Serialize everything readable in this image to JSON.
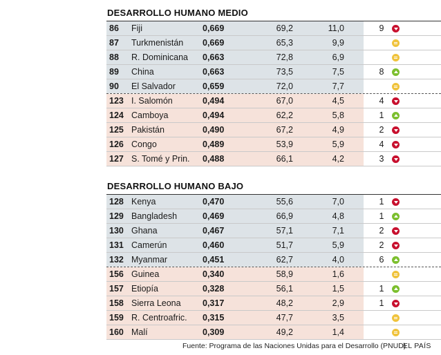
{
  "sections": [
    {
      "title": "DESARROLLO HUMANO MEDIO",
      "rows": [
        {
          "rank": "86",
          "country": "Fiji",
          "idh": "0,669",
          "life": "69,2",
          "school": "11,0",
          "change": "9",
          "trend": "down",
          "group": "blue"
        },
        {
          "rank": "87",
          "country": "Turkmenistán",
          "idh": "0,669",
          "life": "65,3",
          "school": "9,9",
          "change": "",
          "trend": "equal",
          "group": "blue"
        },
        {
          "rank": "88",
          "country": "R. Dominicana",
          "idh": "0,663",
          "life": "72,8",
          "school": "6,9",
          "change": "",
          "trend": "equal",
          "group": "blue"
        },
        {
          "rank": "89",
          "country": "China",
          "idh": "0,663",
          "life": "73,5",
          "school": "7,5",
          "change": "8",
          "trend": "up",
          "group": "blue"
        },
        {
          "rank": "90",
          "country": "El Salvador",
          "idh": "0,659",
          "life": "72,0",
          "school": "7,7",
          "change": "",
          "trend": "equal",
          "group": "blue"
        },
        {
          "rank": "123",
          "country": "I. Salomón",
          "idh": "0,494",
          "life": "67,0",
          "school": "4,5",
          "change": "4",
          "trend": "down",
          "group": "pink"
        },
        {
          "rank": "124",
          "country": "Camboya",
          "idh": "0,494",
          "life": "62,2",
          "school": "5,8",
          "change": "1",
          "trend": "up",
          "group": "pink"
        },
        {
          "rank": "125",
          "country": "Pakistán",
          "idh": "0,490",
          "life": "67,2",
          "school": "4,9",
          "change": "2",
          "trend": "down",
          "group": "pink"
        },
        {
          "rank": "126",
          "country": "Congo",
          "idh": "0,489",
          "life": "53,9",
          "school": "5,9",
          "change": "4",
          "trend": "down",
          "group": "pink"
        },
        {
          "rank": "127",
          "country": "S. Tomé y Prin.",
          "idh": "0,488",
          "life": "66,1",
          "school": "4,2",
          "change": "3",
          "trend": "down",
          "group": "pink"
        }
      ]
    },
    {
      "title": "DESARROLLO HUMANO BAJO",
      "rows": [
        {
          "rank": "128",
          "country": "Kenya",
          "idh": "0,470",
          "life": "55,6",
          "school": "7,0",
          "change": "1",
          "trend": "down",
          "group": "blue"
        },
        {
          "rank": "129",
          "country": "Bangladesh",
          "idh": "0,469",
          "life": "66,9",
          "school": "4,8",
          "change": "1",
          "trend": "up",
          "group": "blue"
        },
        {
          "rank": "130",
          "country": "Ghana",
          "idh": "0,467",
          "life": "57,1",
          "school": "7,1",
          "change": "2",
          "trend": "down",
          "group": "blue"
        },
        {
          "rank": "131",
          "country": "Camerún",
          "idh": "0,460",
          "life": "51,7",
          "school": "5,9",
          "change": "2",
          "trend": "down",
          "group": "blue"
        },
        {
          "rank": "132",
          "country": "Myanmar",
          "idh": "0,451",
          "life": "62,7",
          "school": "4,0",
          "change": "6",
          "trend": "up",
          "group": "blue"
        },
        {
          "rank": "156",
          "country": "Guinea",
          "idh": "0,340",
          "life": "58,9",
          "school": "1,6",
          "change": "",
          "trend": "equal",
          "group": "pink"
        },
        {
          "rank": "157",
          "country": "Etiopía",
          "idh": "0,328",
          "life": "56,1",
          "school": "1,5",
          "change": "1",
          "trend": "up",
          "group": "pink"
        },
        {
          "rank": "158",
          "country": "Sierra Leona",
          "idh": "0,317",
          "life": "48,2",
          "school": "2,9",
          "change": "1",
          "trend": "down",
          "group": "pink"
        },
        {
          "rank": "159",
          "country": "R. Centroafric.",
          "idh": "0,315",
          "life": "47,7",
          "school": "3,5",
          "change": "",
          "trend": "equal",
          "group": "pink"
        },
        {
          "rank": "160",
          "country": "Malí",
          "idh": "0,309",
          "life": "49,2",
          "school": "1,4",
          "change": "",
          "trend": "equal",
          "group": "pink"
        }
      ]
    }
  ],
  "colors": {
    "blue_band": "#dde3e7",
    "pink_band": "#f6e2da",
    "down": "#c8102e",
    "up": "#7cbf2e",
    "equal": "#f0c33c"
  },
  "footer": {
    "source": "Fuente: Programa de las Naciones Unidas para el Desarrollo (PNUD)",
    "brand": "EL PAÍS"
  }
}
